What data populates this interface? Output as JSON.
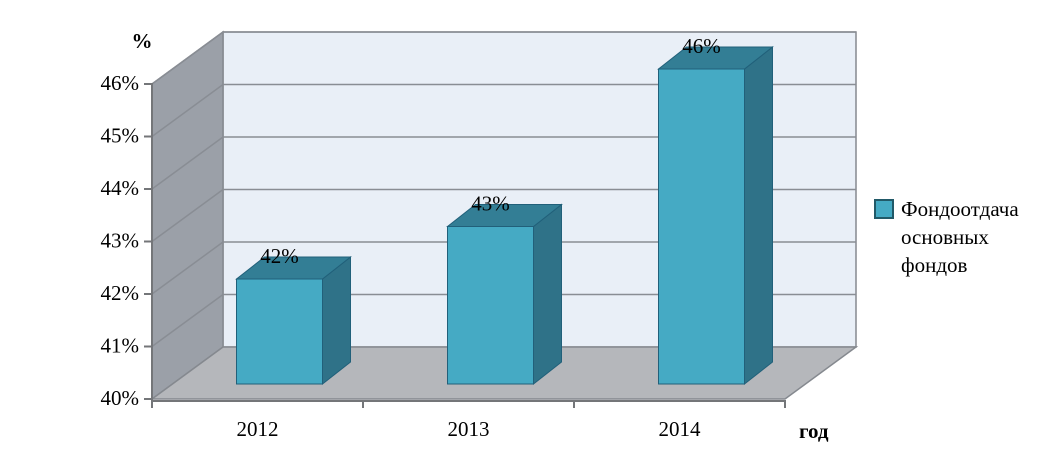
{
  "chart_data": {
    "type": "bar",
    "variant": "3d-column",
    "title": "",
    "categories": [
      "2012",
      "2013",
      "2014"
    ],
    "series": [
      {
        "name": "Фондоотдача основных фондов",
        "values": [
          42,
          43,
          46
        ],
        "data_labels": [
          "42%",
          "43%",
          "46%"
        ]
      }
    ],
    "x_axis": {
      "title": "год"
    },
    "y_axis": {
      "title": "%",
      "min": 40,
      "max": 46,
      "tick_step": 1,
      "tick_labels": [
        "40%",
        "41%",
        "42%",
        "43%",
        "44%",
        "45%",
        "46%"
      ],
      "unit": "percent"
    },
    "grid": true,
    "legend": {
      "position": "right",
      "entries": [
        "Фондоотдача основных фондов"
      ]
    },
    "colors": {
      "bar_front": "#45aac4",
      "bar_top": "#337e95",
      "bar_side": "#2f7288",
      "bar_outline": "#21607a",
      "wall_back": "#e9eff7",
      "wall_side": "#9ba0a8",
      "floor": "#b5b7bb",
      "gridline": "#898d94",
      "wall_border": "#85898f",
      "axis": "#747679",
      "legend_marker_fill": "#45aac4",
      "legend_marker_border": "#215968",
      "text": "#000000"
    }
  }
}
